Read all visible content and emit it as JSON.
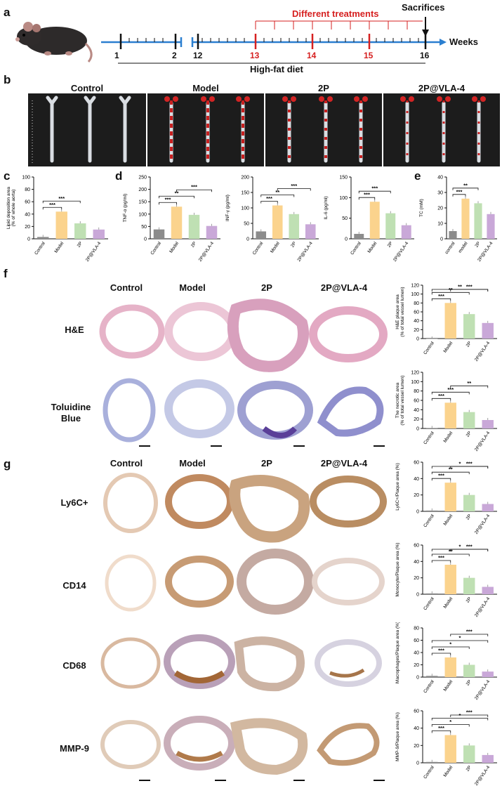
{
  "panel_letters": {
    "a": "a",
    "b": "b",
    "c": "c",
    "d": "d",
    "e": "e",
    "f": "f",
    "g": "g"
  },
  "timeline": {
    "weeks_label": "Weeks",
    "diet_label": "High-fat diet",
    "treatment_label": "Different treatments",
    "sacrifice_label": "Sacrifices",
    "ticks_black": [
      "1",
      "2",
      "12",
      "16"
    ],
    "ticks_red": [
      "13",
      "14",
      "15"
    ]
  },
  "aorta_groups": [
    "Control",
    "Model",
    "2P",
    "2P@VLA-4"
  ],
  "section_columns": [
    "Control",
    "Model",
    "2P",
    "2P@VLA-4"
  ],
  "stain_rows_f": [
    "H&E",
    "Toluidine\nBlue"
  ],
  "stain_rows_g": [
    "Ly6C+",
    "CD14",
    "CD68",
    "MMP-9"
  ],
  "colors": {
    "control": "#8c8c8c",
    "model": "#fbd38d",
    "twoP": "#bfe0b3",
    "vla4": "#c9a8d8",
    "red": "#d62020",
    "blue": "#2b7fd0"
  },
  "chart_data": [
    {
      "id": "c",
      "type": "bar",
      "categories": [
        "Control",
        "Model",
        "2P",
        "2P@VLA-4"
      ],
      "values": [
        3,
        44,
        25,
        15
      ],
      "ylabel": "Lipid deposition area\n(% of whole aorta)",
      "ylim": [
        0,
        100
      ],
      "yticks": [
        0,
        20,
        40,
        60,
        80,
        100
      ],
      "sig": [
        "***",
        "***"
      ]
    },
    {
      "id": "d1",
      "type": "bar",
      "categories": [
        "Control",
        "Model",
        "2P",
        "2P@VLA-4"
      ],
      "values": [
        38,
        130,
        97,
        52
      ],
      "ylabel": "TNF-α (pg/ml)",
      "ylim": [
        0,
        250
      ],
      "yticks": [
        0,
        50,
        100,
        150,
        200,
        250
      ],
      "sig": [
        "***",
        "**",
        "***"
      ]
    },
    {
      "id": "d2",
      "type": "bar",
      "categories": [
        "Control",
        "Model",
        "2P",
        "2P@VLA-4"
      ],
      "values": [
        24,
        108,
        80,
        47
      ],
      "ylabel": "INF-γ (pg/ml)",
      "ylim": [
        0,
        200
      ],
      "yticks": [
        0,
        50,
        100,
        150,
        200
      ],
      "sig": [
        "***",
        "**",
        "***"
      ]
    },
    {
      "id": "d3",
      "type": "bar",
      "categories": [
        "Control",
        "Model",
        "2P",
        "2P@VLA-4"
      ],
      "values": [
        12,
        90,
        62,
        33
      ],
      "ylabel": "IL-6 (pg/ml)",
      "ylim": [
        0,
        150
      ],
      "yticks": [
        0,
        50,
        100,
        150
      ],
      "sig": [
        "***",
        "***"
      ]
    },
    {
      "id": "e",
      "type": "bar",
      "categories": [
        "control",
        "model",
        "2P",
        "2P@VLA-4"
      ],
      "values": [
        5,
        26,
        23,
        16
      ],
      "ylabel": "TC (mM)",
      "ylim": [
        0,
        40
      ],
      "yticks": [
        0,
        10,
        20,
        30,
        40
      ],
      "sig": [
        "***",
        "**"
      ]
    },
    {
      "id": "f1",
      "type": "bar",
      "categories": [
        "Control",
        "Model",
        "2P",
        "2P@VLA-4"
      ],
      "values": [
        0,
        80,
        55,
        35
      ],
      "ylabel": "H&E plaque area\n(% of total vessel lumen)",
      "ylim": [
        0,
        120
      ],
      "yticks": [
        0,
        20,
        40,
        60,
        80,
        100,
        120
      ],
      "sig": [
        "***",
        "**",
        "**",
        "***"
      ]
    },
    {
      "id": "f2",
      "type": "bar",
      "categories": [
        "Control",
        "Model",
        "2P",
        "2P@VLA-4"
      ],
      "values": [
        1,
        55,
        35,
        18
      ],
      "ylabel": "The necrotic area\n(% of total vessel lumen)",
      "ylim": [
        0,
        120
      ],
      "yticks": [
        0,
        20,
        40,
        60,
        80,
        100,
        120
      ],
      "sig": [
        "***",
        "***",
        "**"
      ]
    },
    {
      "id": "g1",
      "type": "bar",
      "categories": [
        "Control",
        "Model",
        "2P",
        "2P@VLA-4"
      ],
      "values": [
        1,
        35,
        20,
        9
      ],
      "ylabel": "Ly6C+/Plaque area (%)",
      "ylim": [
        0,
        60
      ],
      "yticks": [
        0,
        20,
        40,
        60
      ],
      "sig": [
        "***",
        "**",
        "*",
        "***"
      ]
    },
    {
      "id": "g2",
      "type": "bar",
      "categories": [
        "Control",
        "Model",
        "2P",
        "2P@VLA-4"
      ],
      "values": [
        1,
        36,
        20,
        9
      ],
      "ylabel": "Monocyte/Plaque area (%)",
      "ylim": [
        0,
        60
      ],
      "yticks": [
        0,
        20,
        40,
        60
      ],
      "sig": [
        "***",
        "**",
        "*",
        "***"
      ]
    },
    {
      "id": "g3",
      "type": "bar",
      "categories": [
        "Control",
        "Model",
        "2P",
        "2P@VLA-4"
      ],
      "values": [
        2,
        32,
        20,
        9
      ],
      "ylabel": "Macrophages/Plaque area (%)",
      "ylim": [
        0,
        80
      ],
      "yticks": [
        0,
        20,
        40,
        60,
        80
      ],
      "sig": [
        "***",
        "*",
        "*",
        "***"
      ]
    },
    {
      "id": "g4",
      "type": "bar",
      "categories": [
        "Control",
        "Model",
        "2P",
        "2P@VLA-4"
      ],
      "values": [
        1,
        32,
        20,
        9
      ],
      "ylabel": "MMP-9/Plaque area (%)",
      "ylim": [
        0,
        60
      ],
      "yticks": [
        0,
        20,
        40,
        60
      ],
      "sig": [
        "***",
        "*",
        "*",
        "***"
      ]
    }
  ]
}
